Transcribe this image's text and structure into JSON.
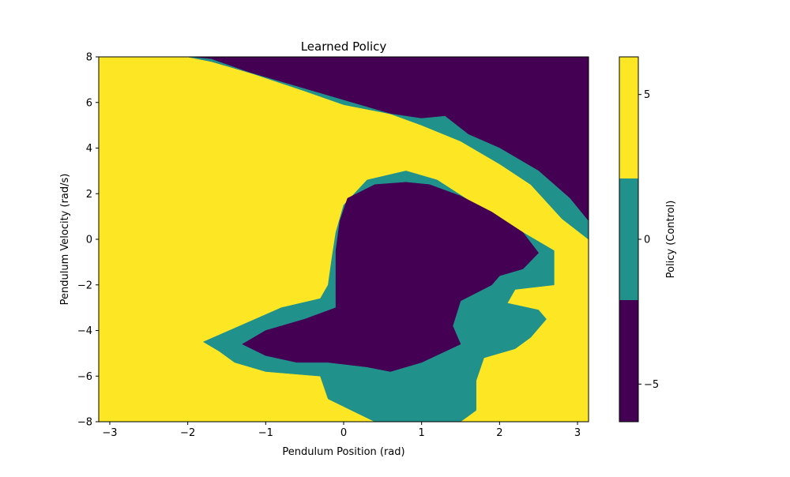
{
  "chart_data": {
    "type": "heatmap",
    "title": "Learned Policy",
    "xlabel": "Pendulum Position (rad)",
    "ylabel": "Pendulum Velocity (rad/s)",
    "xlim": [
      -3.14159,
      3.14159
    ],
    "ylim": [
      -8,
      8
    ],
    "xticks": [
      -3,
      -2,
      -1,
      0,
      1,
      2,
      3
    ],
    "yticks": [
      -8,
      -6,
      -4,
      -2,
      0,
      2,
      4,
      6,
      8
    ],
    "grid": false,
    "levels": [
      {
        "value": 5,
        "color": "#fde725"
      },
      {
        "value": 0,
        "color": "#21918c"
      },
      {
        "value": -5,
        "color": "#440154"
      }
    ],
    "regions": [
      {
        "value": -5,
        "points": [
          [
            -2.0,
            8.0
          ],
          [
            -1.7,
            7.8
          ],
          [
            -1.1,
            7.2
          ],
          [
            -0.4,
            6.5
          ],
          [
            0.1,
            6.0
          ],
          [
            0.6,
            5.5
          ],
          [
            1.0,
            5.3
          ],
          [
            1.3,
            5.4
          ],
          [
            1.6,
            4.6
          ],
          [
            2.0,
            4.0
          ],
          [
            2.5,
            3.0
          ],
          [
            2.9,
            1.8
          ],
          [
            3.14,
            0.8
          ],
          [
            3.14,
            8.0
          ]
        ]
      },
      {
        "value": 0,
        "points": [
          [
            -2.0,
            8.0
          ],
          [
            -1.7,
            7.8
          ],
          [
            -1.1,
            7.2
          ],
          [
            -0.4,
            6.5
          ],
          [
            0.1,
            6.0
          ],
          [
            0.6,
            5.5
          ],
          [
            1.0,
            5.3
          ],
          [
            1.3,
            5.4
          ],
          [
            1.6,
            4.6
          ],
          [
            2.0,
            4.0
          ],
          [
            2.5,
            3.0
          ],
          [
            2.9,
            1.8
          ],
          [
            3.14,
            0.8
          ],
          [
            3.14,
            0.0
          ],
          [
            2.8,
            0.9
          ],
          [
            2.4,
            2.4
          ],
          [
            2.0,
            3.3
          ],
          [
            1.5,
            4.3
          ],
          [
            1.0,
            5.0
          ],
          [
            0.6,
            5.5
          ],
          [
            0.0,
            5.9
          ],
          [
            -0.5,
            6.5
          ],
          [
            -1.2,
            7.3
          ],
          [
            -1.7,
            7.9
          ]
        ]
      },
      {
        "value": 0,
        "points": [
          [
            0.0,
            1.5
          ],
          [
            0.3,
            2.6
          ],
          [
            0.8,
            3.0
          ],
          [
            1.2,
            2.6
          ],
          [
            1.7,
            1.5
          ],
          [
            2.3,
            0.3
          ],
          [
            2.7,
            -0.5
          ],
          [
            2.7,
            -2.0
          ],
          [
            2.2,
            -2.2
          ],
          [
            2.1,
            -2.8
          ],
          [
            2.5,
            -3.1
          ],
          [
            2.6,
            -3.5
          ],
          [
            2.4,
            -4.3
          ],
          [
            2.2,
            -4.8
          ],
          [
            1.8,
            -5.2
          ],
          [
            1.7,
            -6.2
          ],
          [
            1.7,
            -7.5
          ],
          [
            1.5,
            -8.0
          ],
          [
            0.4,
            -8.0
          ],
          [
            0.1,
            -7.5
          ],
          [
            -0.2,
            -7.0
          ],
          [
            -0.3,
            -6.0
          ],
          [
            -1.0,
            -5.8
          ],
          [
            -1.4,
            -5.4
          ],
          [
            -1.6,
            -4.9
          ],
          [
            -1.8,
            -4.5
          ],
          [
            -1.4,
            -3.9
          ],
          [
            -0.8,
            -3.0
          ],
          [
            -0.3,
            -2.6
          ],
          [
            -0.2,
            -2.0
          ],
          [
            -0.15,
            -0.8
          ],
          [
            -0.1,
            0.3
          ]
        ]
      },
      {
        "value": -5,
        "points": [
          [
            0.05,
            1.8
          ],
          [
            0.4,
            2.4
          ],
          [
            0.8,
            2.5
          ],
          [
            1.1,
            2.4
          ],
          [
            1.5,
            1.9
          ],
          [
            1.9,
            1.2
          ],
          [
            2.3,
            0.3
          ],
          [
            2.5,
            -0.6
          ],
          [
            2.3,
            -1.3
          ],
          [
            2.0,
            -1.6
          ],
          [
            1.9,
            -2.0
          ],
          [
            1.5,
            -2.7
          ],
          [
            1.4,
            -3.8
          ],
          [
            1.5,
            -4.6
          ],
          [
            1.0,
            -5.4
          ],
          [
            0.6,
            -5.8
          ],
          [
            0.3,
            -5.6
          ],
          [
            -0.2,
            -5.4
          ],
          [
            -0.6,
            -5.4
          ],
          [
            -1.0,
            -5.1
          ],
          [
            -1.3,
            -4.6
          ],
          [
            -1.0,
            -4.0
          ],
          [
            -0.5,
            -3.5
          ],
          [
            -0.1,
            -3.0
          ],
          [
            -0.1,
            -2.0
          ],
          [
            -0.1,
            -0.5
          ],
          [
            -0.05,
            0.8
          ]
        ]
      }
    ],
    "colorbar": {
      "label": "Policy (Control)",
      "range": [
        -6.3,
        6.3
      ],
      "ticks": [
        5,
        0,
        -5
      ],
      "bands": [
        {
          "from": -6.3,
          "to": -2.1,
          "color": "#440154"
        },
        {
          "from": -2.1,
          "to": 2.1,
          "color": "#21918c"
        },
        {
          "from": 2.1,
          "to": 6.3,
          "color": "#fde725"
        }
      ]
    }
  }
}
